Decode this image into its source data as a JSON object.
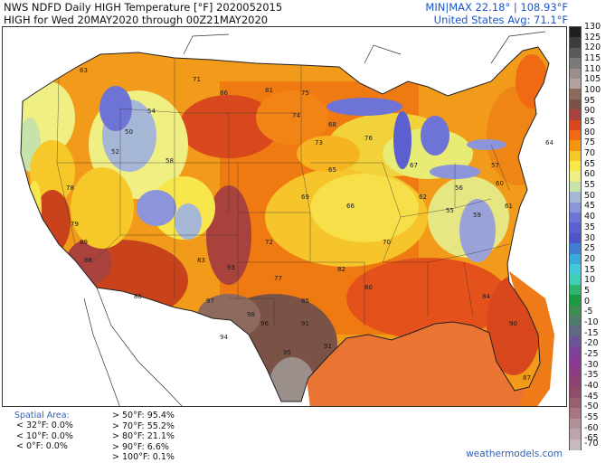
{
  "header": {
    "line1": "NWS NDFD Daily HIGH Temperature [°F]  2020052015",
    "line2": "HIGH for Wed 20MAY2020 through 00Z21MAY2020",
    "minmax": "MIN|MAX 22.18°  |  108.93°F",
    "avg": "United States Avg: 71.1°F"
  },
  "colorbar": {
    "labels": [
      "130",
      "125",
      "120",
      "115",
      "110",
      "105",
      "100",
      "95",
      "90",
      "85",
      "80",
      "75",
      "70",
      "65",
      "60",
      "55",
      "50",
      "45",
      "40",
      "35",
      "30",
      "25",
      "20",
      "15",
      "10",
      "5",
      "0",
      "-5",
      "-10",
      "-15",
      "-20",
      "-25",
      "-30",
      "-35",
      "-40",
      "-45",
      "-50",
      "-55",
      "-60",
      "-65",
      "-70"
    ],
    "colors": [
      "#1f1f1f",
      "#3c3c3c",
      "#5a5a5a",
      "#7a7a7a",
      "#9b8f8c",
      "#b3a29d",
      "#8e6a5e",
      "#7a5346",
      "#a9413c",
      "#d8481c",
      "#ef6a12",
      "#f6960f",
      "#f6c82a",
      "#f7e74c",
      "#f0ef83",
      "#c7e3a9",
      "#a6b7d6",
      "#8c94da",
      "#6e73d6",
      "#5b5fd0",
      "#4b55c7",
      "#3f7ed2",
      "#3aa9dc",
      "#44c8dc",
      "#3fcfb6",
      "#2db56f",
      "#1c9a42",
      "#3c8d52",
      "#4f7b6b",
      "#5e6982",
      "#6b5597",
      "#7d439c",
      "#8a3a95",
      "#8c3e83",
      "#8d4474",
      "#8f4d6a",
      "#9a5f6e",
      "#a87680",
      "#b38f97",
      "#bca5ad",
      "#c6b9bf"
    ]
  },
  "footer": {
    "spatial_area": "Spatial Area:",
    "stats_left": [
      "< 32°F: 0.0%",
      "< 10°F: 0.0%",
      "< 0°F: 0.0%"
    ],
    "stats_right": [
      "> 50°F: 95.4%",
      "> 70°F: 55.2%",
      "> 80°F: 21.1%",
      "> 90°F: 6.6%",
      "> 100°F: 0.1%"
    ],
    "credit": "weathermodels.com"
  },
  "map": {
    "temperature_labels": [
      {
        "text": "63"
      },
      {
        "text": "71"
      },
      {
        "text": "86"
      },
      {
        "text": "81"
      },
      {
        "text": "75"
      },
      {
        "text": "68"
      },
      {
        "text": "74"
      },
      {
        "text": "76"
      },
      {
        "text": "73"
      },
      {
        "text": "64"
      },
      {
        "text": "60"
      },
      {
        "text": "56"
      },
      {
        "text": "78"
      },
      {
        "text": "79"
      },
      {
        "text": "88"
      },
      {
        "text": "89"
      },
      {
        "text": "86"
      },
      {
        "text": "85"
      },
      {
        "text": "83"
      },
      {
        "text": "93"
      },
      {
        "text": "97"
      },
      {
        "text": "98"
      },
      {
        "text": "96"
      },
      {
        "text": "95"
      },
      {
        "text": "91"
      },
      {
        "text": "94"
      },
      {
        "text": "92"
      },
      {
        "text": "87"
      },
      {
        "text": "80"
      },
      {
        "text": "82"
      },
      {
        "text": "70"
      },
      {
        "text": "66"
      },
      {
        "text": "69"
      },
      {
        "text": "72"
      },
      {
        "text": "65"
      },
      {
        "text": "62"
      },
      {
        "text": "59"
      },
      {
        "text": "57"
      },
      {
        "text": "58"
      },
      {
        "text": "61"
      },
      {
        "text": "67"
      },
      {
        "text": "77"
      },
      {
        "text": "84"
      },
      {
        "text": "90"
      },
      {
        "text": "50"
      },
      {
        "text": "54"
      },
      {
        "text": "52"
      },
      {
        "text": "55"
      }
    ]
  }
}
